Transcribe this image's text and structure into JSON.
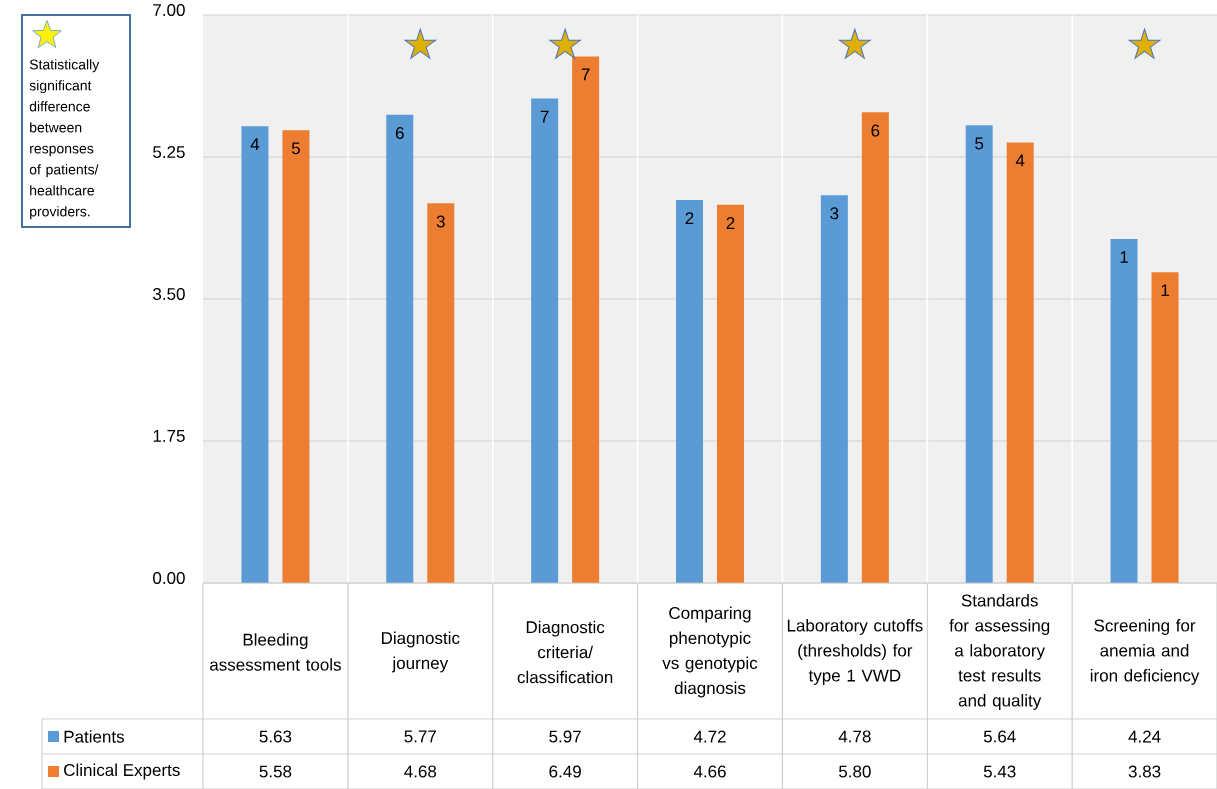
{
  "chart_data": {
    "type": "bar",
    "categories": [
      "Bleeding assessment tools",
      "Diagnostic journey",
      "Diagnostic criteria/classification",
      "Comparing phenotypic vs genotypic diagnosis",
      "Laboratory cutoffs (thresholds) for type 1 VWD",
      "Standards for assessing a laboratory test results and quality",
      "Screening for anemia and iron deficiency"
    ],
    "series": [
      {
        "name": "Patients",
        "color": "#5b9bd5",
        "values": [
          5.63,
          5.77,
          5.97,
          4.72,
          4.78,
          5.64,
          4.24
        ],
        "value_labels": [
          "5.63",
          "5.77",
          "5.97",
          "4.72",
          "4.78",
          "5.64",
          "4.24"
        ]
      },
      {
        "name": "Clinical Experts",
        "color": "#ed7d31",
        "values": [
          5.58,
          4.68,
          6.49,
          4.66,
          5.8,
          5.43,
          3.83
        ],
        "value_labels": [
          "5.58",
          "4.68",
          "6.49",
          "4.66",
          "5.80",
          "5.43",
          "3.83"
        ]
      }
    ],
    "ylim": [
      0,
      7
    ],
    "yticks": [
      {
        "value": 0,
        "label": "0.00"
      },
      {
        "value": 1.75,
        "label": "1.75"
      },
      {
        "value": 3.5,
        "label": "3.50"
      },
      {
        "value": 5.25,
        "label": "5.25"
      },
      {
        "value": 7,
        "label": "7.00"
      }
    ],
    "grid": "y",
    "legend": "bottom",
    "annotations": [
      "Statistically significant difference between responses of patients/ healthcare providers.",
      {
        "text": "★",
        "x": "Diagnostic journey"
      },
      {
        "text": "★",
        "x": "Diagnostic criteria/classification"
      },
      {
        "text": "★",
        "x": "Laboratory cutoffs (thresholds) for type 1 VWD"
      },
      {
        "text": "★",
        "x": "Screening for anemia and iron deficiency"
      },
      "4",
      "5",
      "6",
      "3",
      "7",
      "7",
      "2",
      "2",
      "3",
      "6",
      "5",
      "4",
      "1",
      "1"
    ]
  }
}
